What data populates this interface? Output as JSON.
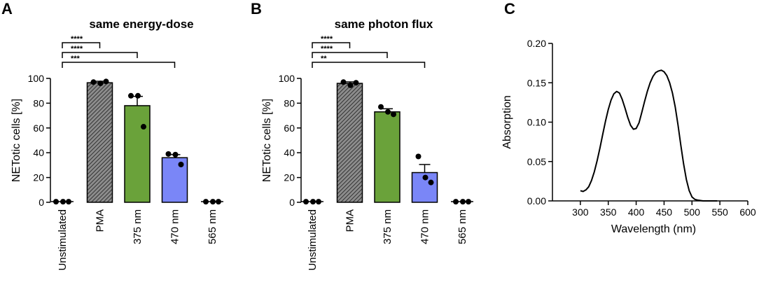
{
  "panels": [
    {
      "letter": "A",
      "title": "same energy-dose"
    },
    {
      "letter": "B",
      "title": "same photon flux"
    },
    {
      "letter": "C",
      "title": ""
    }
  ],
  "colors": {
    "pma": "#555555",
    "nm375": "#6aa23a",
    "nm470": "#7a86f7",
    "axis": "#000000"
  },
  "chart_data": [
    {
      "type": "bar",
      "title": "same energy-dose",
      "ylabel": "NETotic cells [%]",
      "ylim": [
        0,
        100
      ],
      "yticks": [
        0,
        20,
        40,
        60,
        80,
        100
      ],
      "categories": [
        "Unstimulated",
        "PMA",
        "375 nm",
        "470 nm",
        "565 nm"
      ],
      "values": [
        0.5,
        96.5,
        78,
        36,
        0.5
      ],
      "errors": [
        0,
        1.2,
        7.5,
        2.5,
        0
      ],
      "points": [
        [
          0.5,
          0.5,
          0.5
        ],
        [
          97,
          96,
          97.5
        ],
        [
          86,
          86,
          61
        ],
        [
          39,
          38.5,
          30.5
        ],
        [
          0.5,
          0.5,
          0.5
        ]
      ],
      "bar_colors": [
        "#000000",
        "#555555",
        "#6aa23a",
        "#7a86f7",
        "#000000"
      ],
      "hatched": [
        false,
        true,
        false,
        false,
        false
      ],
      "significance": [
        {
          "from": 0,
          "to": 1,
          "label": "****"
        },
        {
          "from": 0,
          "to": 2,
          "label": "****"
        },
        {
          "from": 0,
          "to": 3,
          "label": "***"
        }
      ]
    },
    {
      "type": "bar",
      "title": "same photon flux",
      "ylabel": "NETotic cells [%]",
      "ylim": [
        0,
        100
      ],
      "yticks": [
        0,
        20,
        40,
        60,
        80,
        100
      ],
      "categories": [
        "Unstimulated",
        "PMA",
        "375 nm",
        "470 nm",
        "565 nm"
      ],
      "values": [
        0.5,
        96,
        73,
        24,
        0.5
      ],
      "errors": [
        0,
        1.2,
        2.5,
        6.5,
        0
      ],
      "points": [
        [
          0.5,
          0.5,
          0.5
        ],
        [
          97,
          94.5,
          96.5
        ],
        [
          77,
          73,
          71
        ],
        [
          37,
          20,
          16
        ],
        [
          0.5,
          0.5,
          0.5
        ]
      ],
      "bar_colors": [
        "#000000",
        "#555555",
        "#6aa23a",
        "#7a86f7",
        "#000000"
      ],
      "hatched": [
        false,
        true,
        false,
        false,
        false
      ],
      "significance": [
        {
          "from": 0,
          "to": 1,
          "label": "****"
        },
        {
          "from": 0,
          "to": 2,
          "label": "****"
        },
        {
          "from": 0,
          "to": 3,
          "label": "**"
        }
      ]
    },
    {
      "type": "line",
      "title": "",
      "xlabel": "Wavelength (nm)",
      "ylabel": "Absorption",
      "xlim": [
        250,
        600
      ],
      "ylim": [
        0,
        0.2
      ],
      "xticks": [
        300,
        350,
        400,
        450,
        500,
        550,
        600
      ],
      "yticks": [
        "0.00",
        "0.05",
        "0.10",
        "0.15",
        "0.20"
      ],
      "series": [
        {
          "x": [
            300,
            305,
            310,
            315,
            320,
            325,
            330,
            335,
            340,
            345,
            350,
            355,
            360,
            365,
            370,
            375,
            380,
            385,
            390,
            395,
            400,
            405,
            410,
            415,
            420,
            425,
            430,
            435,
            440,
            445,
            450,
            455,
            460,
            465,
            470,
            475,
            480,
            485,
            490,
            495,
            500,
            505,
            510,
            520,
            530,
            545
          ],
          "y": [
            0.013,
            0.012,
            0.014,
            0.018,
            0.026,
            0.037,
            0.051,
            0.067,
            0.084,
            0.101,
            0.116,
            0.128,
            0.136,
            0.139,
            0.137,
            0.129,
            0.118,
            0.106,
            0.096,
            0.091,
            0.092,
            0.099,
            0.112,
            0.126,
            0.139,
            0.15,
            0.158,
            0.163,
            0.165,
            0.166,
            0.164,
            0.159,
            0.15,
            0.137,
            0.119,
            0.096,
            0.071,
            0.047,
            0.027,
            0.013,
            0.005,
            0.002,
            0.001,
            0.0,
            0.0,
            0.0
          ]
        }
      ]
    }
  ]
}
